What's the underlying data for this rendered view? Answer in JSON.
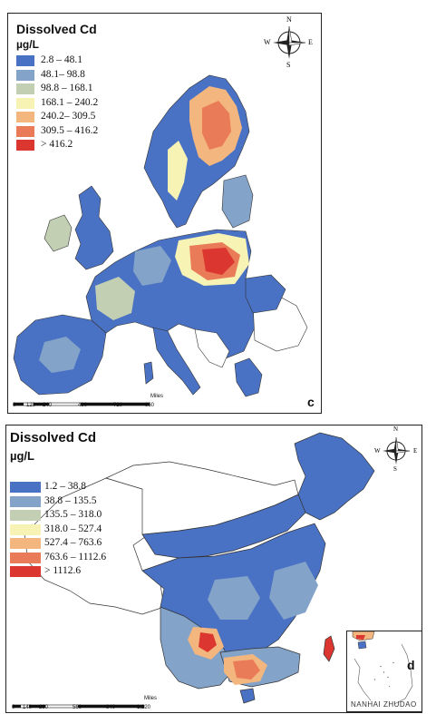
{
  "panel_c": {
    "title": "Dissolved Cd",
    "unit": "µg/L",
    "letter": "c",
    "legend": [
      {
        "label": "2.8 – 48.1",
        "color": "#4a72c4"
      },
      {
        "label": "48.1– 98.8",
        "color": "#84a3c9"
      },
      {
        "label": "98.8 – 168.1",
        "color": "#c3cfb2"
      },
      {
        "label": "168.1 – 240.2",
        "color": "#f6f3b4"
      },
      {
        "label": "240.2– 309.5",
        "color": "#f4b67f"
      },
      {
        "label": "309.5 – 416.2",
        "color": "#ea7b58"
      },
      {
        "label": "> 416.2",
        "color": "#dc3630"
      }
    ],
    "scale": {
      "ticks": [
        "0",
        "120",
        "240",
        "480",
        "720",
        "960"
      ],
      "unit": "Miles"
    },
    "compass": {
      "n": "N",
      "s": "S",
      "e": "E",
      "w": "W"
    }
  },
  "panel_d": {
    "title": "Dissolved Cd",
    "unit": "µg/L",
    "letter": "d",
    "legend": [
      {
        "label": "1.2 – 38.8",
        "color": "#4a72c4"
      },
      {
        "label": "38.8 – 135.5",
        "color": "#84a3c9"
      },
      {
        "label": "135.5 – 318.0",
        "color": "#c3cfb2"
      },
      {
        "label": "318.0 – 527.4",
        "color": "#f6f3b4"
      },
      {
        "label": "527.4 – 763.6",
        "color": "#f4b67f"
      },
      {
        "label": "763.6 – 1112.6",
        "color": "#ea7b58"
      },
      {
        "label": "> 1112.6",
        "color": "#dc3630"
      }
    ],
    "scale": {
      "ticks": [
        "0",
        "140",
        "280",
        "560",
        "840",
        "1,120"
      ],
      "unit": "Miles"
    },
    "inset_label": "NANHAI ZHUDAO",
    "compass": {
      "n": "N",
      "s": "S",
      "e": "E",
      "w": "W"
    }
  }
}
